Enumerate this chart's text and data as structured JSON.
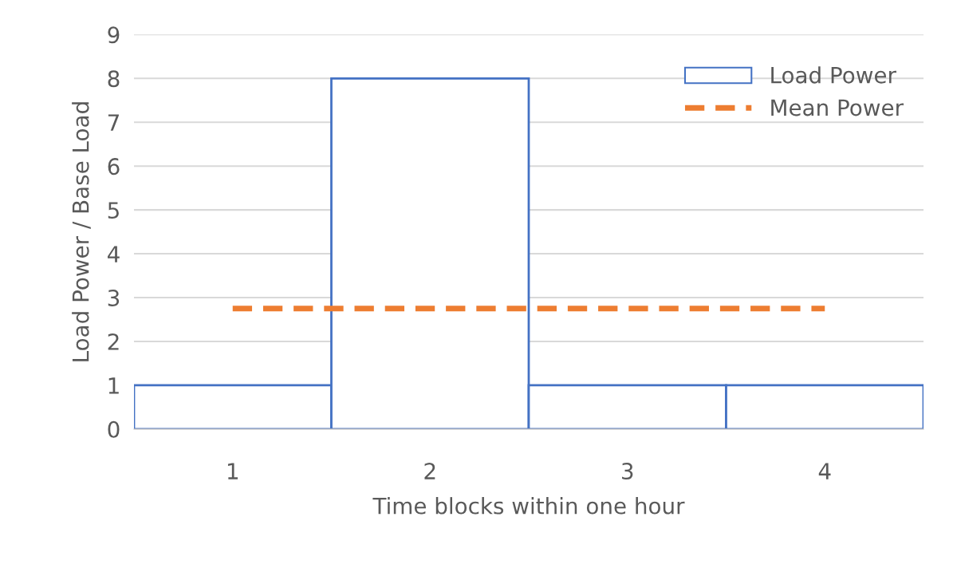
{
  "chart_data": {
    "type": "bar",
    "xlabel": "Time blocks within one hour",
    "ylabel": "Load Power / Base Load",
    "categories": [
      "1",
      "2",
      "3",
      "4"
    ],
    "series": [
      {
        "name": "Load Power",
        "color": "#4472c4",
        "values": [
          1,
          8,
          1,
          1
        ]
      },
      {
        "name": "Mean Power",
        "type": "line",
        "color": "#ed7d31",
        "line_style": "dashed",
        "values": [
          2.75,
          2.75,
          2.75,
          2.75
        ]
      }
    ],
    "ylim": [
      0,
      9
    ],
    "yticks": [
      0,
      1,
      2,
      3,
      4,
      5,
      6,
      7,
      8,
      9
    ],
    "grid": "y",
    "legend": "top right"
  }
}
